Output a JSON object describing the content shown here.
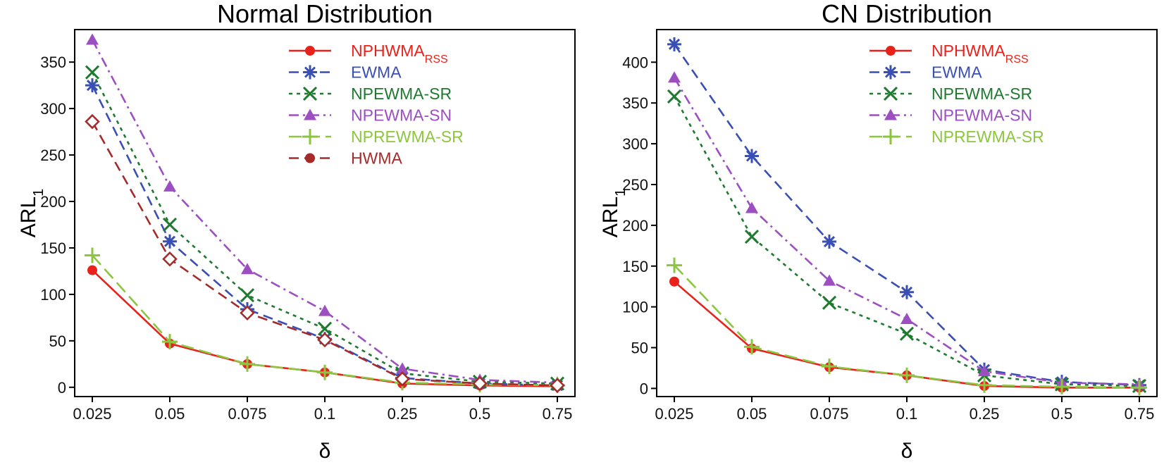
{
  "chart_data": [
    {
      "type": "line",
      "title": "Normal Distribution",
      "xlabel": "δ",
      "ylabel": "ARL",
      "ylabel_subscript": "1",
      "categories": [
        "0.025",
        "0.05",
        "0.075",
        "0.1",
        "0.25",
        "0.5",
        "0.75"
      ],
      "ylim": [
        -10,
        385
      ],
      "yticks": [
        0,
        50,
        100,
        150,
        200,
        250,
        300,
        350
      ],
      "grid": false,
      "legend_position": "top-right",
      "series": [
        {
          "name": "NPHWMA",
          "subscript": "RSS",
          "color": "#e8221b",
          "dash": "",
          "marker": "circle",
          "values": [
            126,
            47,
            25,
            16,
            4,
            2,
            1
          ]
        },
        {
          "name": "EWMA",
          "color": "#3a4fb4",
          "dash": "14,8",
          "marker": "asterisk",
          "values": [
            325,
            157,
            84,
            52,
            10,
            4,
            2
          ]
        },
        {
          "name": "NPEWMA-SR",
          "color": "#1e7a2e",
          "dash": "5,6",
          "marker": "x",
          "values": [
            339,
            175,
            99,
            63,
            15,
            6,
            4
          ]
        },
        {
          "name": "NPEWMA-SN",
          "color": "#9b4fc0",
          "dash": "14,6,3,6",
          "marker": "triangle",
          "values": [
            374,
            216,
            127,
            82,
            20,
            8,
            5
          ]
        },
        {
          "name": "NPREWMA-SR",
          "color": "#8cc63f",
          "dash": "18,8",
          "marker": "plus",
          "values": [
            142,
            49,
            25,
            16,
            5,
            3,
            2
          ]
        },
        {
          "name": "HWMA",
          "color": "#a52a2a",
          "dash": "14,8",
          "marker": "diamond",
          "legend_marker": "circle",
          "values": [
            286,
            138,
            80,
            51,
            9,
            4,
            2
          ]
        }
      ]
    },
    {
      "type": "line",
      "title": "CN Distribution",
      "xlabel": "δ",
      "ylabel": "ARL",
      "ylabel_subscript": "1",
      "categories": [
        "0.025",
        "0.05",
        "0.075",
        "0.1",
        "0.25",
        "0.5",
        "0.75"
      ],
      "ylim": [
        -10,
        440
      ],
      "yticks": [
        0,
        50,
        100,
        150,
        200,
        250,
        300,
        350,
        400
      ],
      "grid": false,
      "legend_position": "top-right",
      "series": [
        {
          "name": "NPHWMA",
          "subscript": "RSS",
          "color": "#e8221b",
          "dash": "",
          "marker": "circle",
          "values": [
            131,
            49,
            26,
            16,
            3,
            1,
            1
          ]
        },
        {
          "name": "EWMA",
          "color": "#3a4fb4",
          "dash": "14,8",
          "marker": "asterisk",
          "values": [
            422,
            285,
            180,
            118,
            23,
            8,
            4
          ]
        },
        {
          "name": "NPEWMA-SR",
          "color": "#1e7a2e",
          "dash": "5,6",
          "marker": "x",
          "values": [
            358,
            186,
            105,
            67,
            16,
            5,
            3
          ]
        },
        {
          "name": "NPEWMA-SN",
          "color": "#9b4fc0",
          "dash": "14,6,3,6",
          "marker": "triangle",
          "values": [
            381,
            221,
            132,
            85,
            21,
            7,
            5
          ]
        },
        {
          "name": "NPREWMA-SR",
          "color": "#8cc63f",
          "dash": "18,8",
          "marker": "plus",
          "values": [
            151,
            51,
            27,
            16,
            4,
            2,
            1
          ]
        }
      ]
    }
  ]
}
